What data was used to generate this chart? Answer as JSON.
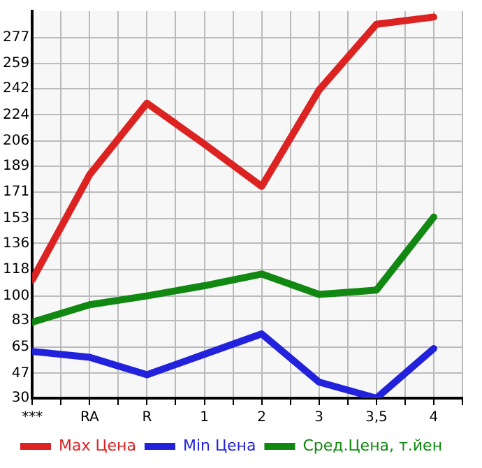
{
  "chart_data": {
    "type": "line",
    "categories": [
      "***",
      "RA",
      "R",
      "1",
      "2",
      "3",
      "3,5",
      "4"
    ],
    "series": [
      {
        "name": "Max Цена",
        "color": "#dd2222",
        "values": [
          111,
          183,
          232,
          204,
          175,
          241,
          286,
          291
        ]
      },
      {
        "name": "Min Цена",
        "color": "#2222dd",
        "values": [
          62,
          58,
          46,
          60,
          74,
          41,
          30,
          64
        ]
      },
      {
        "name": "Сред.Цена, т.йен",
        "color": "#118811",
        "values": [
          82,
          94,
          100,
          107,
          115,
          101,
          104,
          154
        ]
      }
    ],
    "ylim": [
      30,
      295
    ],
    "yticks": [
      30,
      47,
      65,
      83,
      100,
      118,
      136,
      153,
      171,
      189,
      206,
      224,
      242,
      259,
      277
    ],
    "grid": true,
    "legend": "bottom",
    "marker": "none",
    "line_style": "solid"
  }
}
